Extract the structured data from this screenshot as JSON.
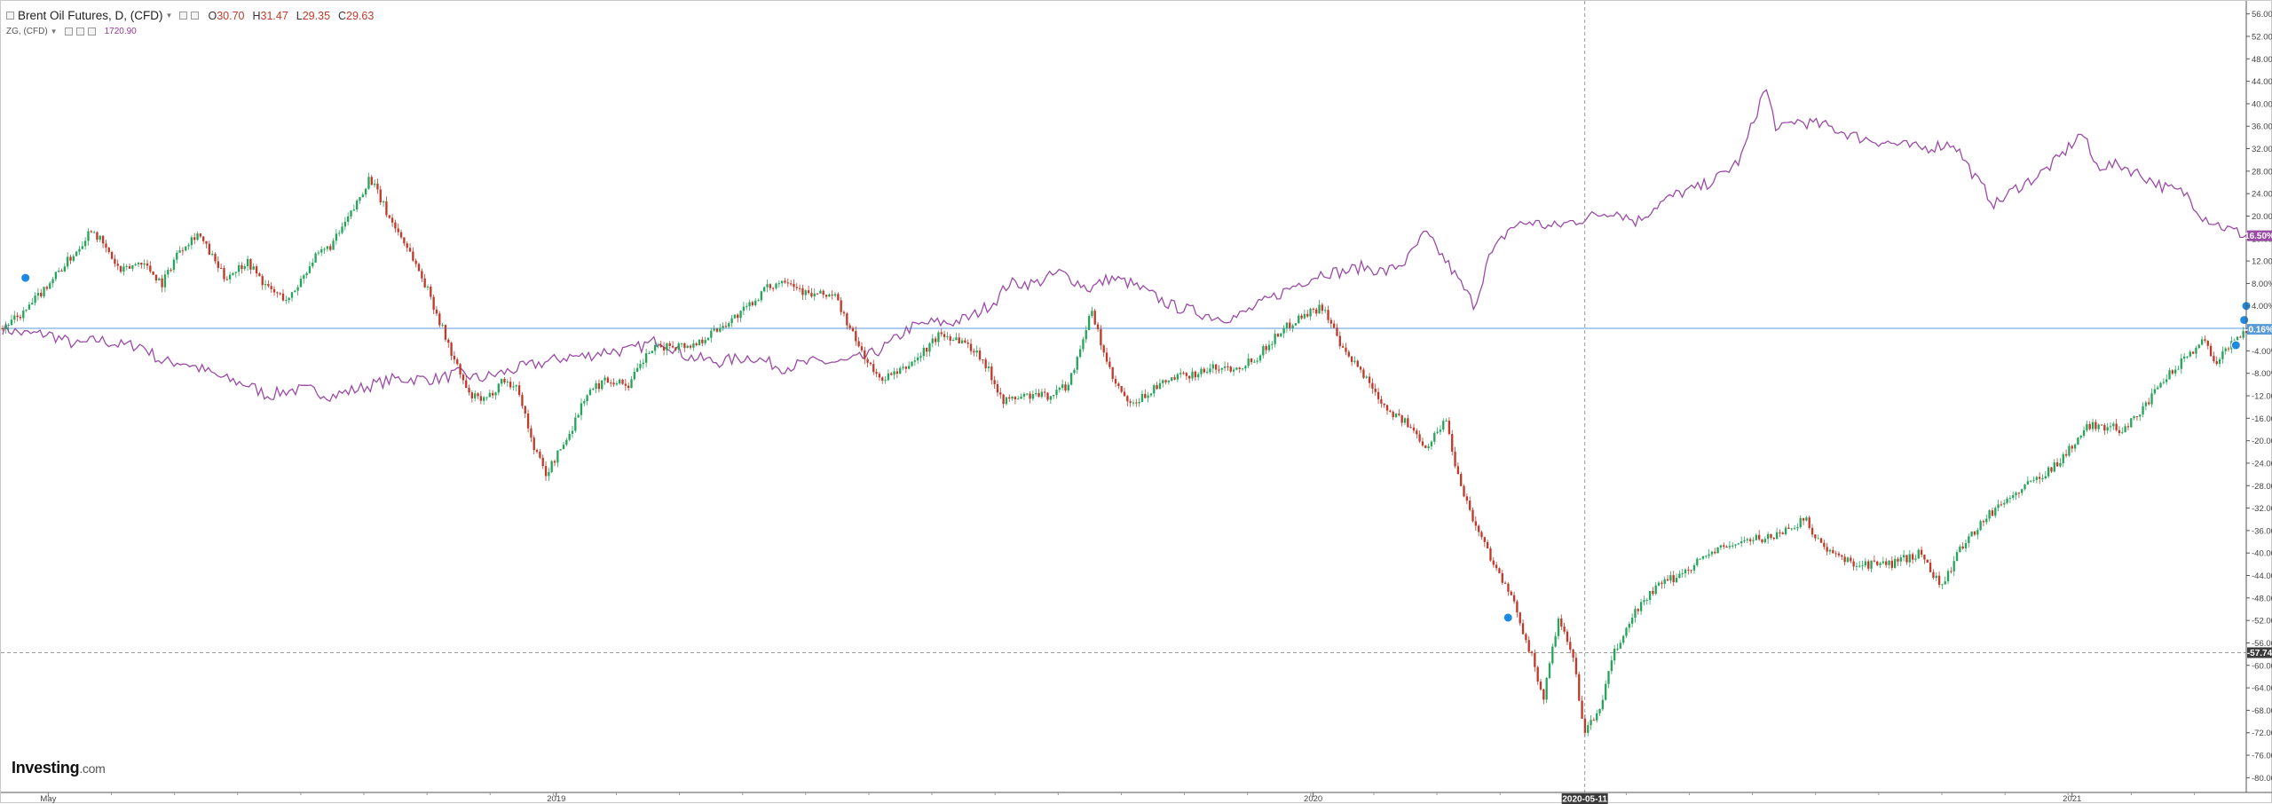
{
  "legend": {
    "title": "Brent Oil Futures, D, (CFD)",
    "ohlc": [
      {
        "label": "O",
        "value": "30.70"
      },
      {
        "label": "H",
        "value": "31.47"
      },
      {
        "label": "L",
        "value": "29.35"
      },
      {
        "label": "C",
        "value": "29.63"
      }
    ],
    "compare_symbol": "ZG, (CFD)",
    "compare_value": "1720.90"
  },
  "branding": {
    "logo": "Investing",
    "logo_suffix": ".com"
  },
  "colors": {
    "up": "#26a65b",
    "down": "#c0392b",
    "compare": "#9b4ba6",
    "baseline": "#5b9bd5",
    "crosshair": "#9c9c9c",
    "marker": "#1e88e5"
  },
  "chart_data": {
    "type": "line",
    "chart_style": "candlestick vs. line (percent comparison)",
    "y_axis": {
      "unit": "%",
      "range": [
        -82,
        58
      ],
      "ticks": [
        "56.00%",
        "52.00%",
        "48.00%",
        "44.00%",
        "40.00%",
        "36.00%",
        "32.00%",
        "28.00%",
        "24.00%",
        "20.00%",
        "16.00%",
        "12.00%",
        "8.00%",
        "4.00%",
        "0.00%",
        "-4.00%",
        "-8.00%",
        "-12.00%",
        "-16.00%",
        "-20.00%",
        "-24.00%",
        "-28.00%",
        "-32.00%",
        "-36.00%",
        "-40.00%",
        "-44.00%",
        "-48.00%",
        "-52.00%",
        "-56.00%",
        "-60.00%",
        "-64.00%",
        "-68.00%",
        "-72.00%",
        "-76.00%",
        "-80.00%"
      ],
      "tick_values": [
        56,
        52,
        48,
        44,
        40,
        36,
        32,
        28,
        24,
        20,
        16,
        12,
        8,
        4,
        0,
        -4,
        -8,
        -12,
        -16,
        -20,
        -24,
        -28,
        -32,
        -36,
        -40,
        -44,
        -48,
        -52,
        -56,
        -60,
        -64,
        -68,
        -72,
        -76,
        -80
      ],
      "position": "right"
    },
    "x_axis": {
      "ticks": [
        "May",
        "2019",
        "2020",
        "2021"
      ],
      "tick_dates": [
        "2018-05-01",
        "2019-01-01",
        "2020-01-01",
        "2021-01-01"
      ],
      "range": [
        "2018-04-09",
        "2021-03-26"
      ]
    },
    "crosshair": {
      "date": "2020-05-11",
      "date_label": "2020-05-11",
      "value": -57.74,
      "value_label": "-57.74"
    },
    "badges": [
      {
        "series": "ZG, (CFD)",
        "value": 16.5,
        "label": "16.50%"
      },
      {
        "series": "Brent Oil Futures",
        "value": -0.16,
        "label": "-0.16%"
      }
    ],
    "series": [
      {
        "name": "Brent Oil Futures, D, (CFD)",
        "kind": "candlestick",
        "points": [
          [
            "2018-04-09",
            0
          ],
          [
            "2018-04-20",
            3
          ],
          [
            "2018-05-01",
            8
          ],
          [
            "2018-05-15",
            14
          ],
          [
            "2018-05-22",
            18
          ],
          [
            "2018-06-05",
            10
          ],
          [
            "2018-06-15",
            12
          ],
          [
            "2018-06-25",
            8
          ],
          [
            "2018-07-03",
            14
          ],
          [
            "2018-07-12",
            17
          ],
          [
            "2018-07-25",
            9
          ],
          [
            "2018-08-05",
            12
          ],
          [
            "2018-08-15",
            7
          ],
          [
            "2018-08-25",
            5
          ],
          [
            "2018-09-05",
            12
          ],
          [
            "2018-09-15",
            15
          ],
          [
            "2018-09-25",
            21
          ],
          [
            "2018-10-03",
            27
          ],
          [
            "2018-10-12",
            20
          ],
          [
            "2018-10-22",
            14
          ],
          [
            "2018-11-01",
            6
          ],
          [
            "2018-11-12",
            -5
          ],
          [
            "2018-11-20",
            -12
          ],
          [
            "2018-11-28",
            -13
          ],
          [
            "2018-12-06",
            -9
          ],
          [
            "2018-12-14",
            -11
          ],
          [
            "2018-12-20",
            -20
          ],
          [
            "2018-12-27",
            -26
          ],
          [
            "2019-01-07",
            -19
          ],
          [
            "2019-01-15",
            -12
          ],
          [
            "2019-01-25",
            -9
          ],
          [
            "2019-02-05",
            -10
          ],
          [
            "2019-02-15",
            -4
          ],
          [
            "2019-02-25",
            -3
          ],
          [
            "2019-03-08",
            -3
          ],
          [
            "2019-03-20",
            0
          ],
          [
            "2019-04-01",
            3
          ],
          [
            "2019-04-12",
            7
          ],
          [
            "2019-04-22",
            9
          ],
          [
            "2019-05-02",
            6
          ],
          [
            "2019-05-15",
            6
          ],
          [
            "2019-05-25",
            -2
          ],
          [
            "2019-06-05",
            -9
          ],
          [
            "2019-06-15",
            -8
          ],
          [
            "2019-06-25",
            -5
          ],
          [
            "2019-07-05",
            -1
          ],
          [
            "2019-07-15",
            -2
          ],
          [
            "2019-07-25",
            -5
          ],
          [
            "2019-08-05",
            -13
          ],
          [
            "2019-08-15",
            -12
          ],
          [
            "2019-08-26",
            -12
          ],
          [
            "2019-09-05",
            -10
          ],
          [
            "2019-09-16",
            3
          ],
          [
            "2019-09-26",
            -9
          ],
          [
            "2019-10-05",
            -14
          ],
          [
            "2019-10-15",
            -11
          ],
          [
            "2019-10-25",
            -9
          ],
          [
            "2019-11-05",
            -8
          ],
          [
            "2019-11-15",
            -7
          ],
          [
            "2019-11-25",
            -7
          ],
          [
            "2019-12-05",
            -5
          ],
          [
            "2019-12-15",
            -1
          ],
          [
            "2019-12-25",
            2
          ],
          [
            "2020-01-06",
            4
          ],
          [
            "2020-01-15",
            -4
          ],
          [
            "2020-01-25",
            -8
          ],
          [
            "2020-02-05",
            -14
          ],
          [
            "2020-02-15",
            -17
          ],
          [
            "2020-02-25",
            -21
          ],
          [
            "2020-03-05",
            -16
          ],
          [
            "2020-03-10",
            -25
          ],
          [
            "2020-03-18",
            -34
          ],
          [
            "2020-03-31",
            -44
          ],
          [
            "2020-04-08",
            -50
          ],
          [
            "2020-04-15",
            -58
          ],
          [
            "2020-04-21",
            -66
          ],
          [
            "2020-04-28",
            -52
          ],
          [
            "2020-05-05",
            -58
          ],
          [
            "2020-05-11",
            -72
          ],
          [
            "2020-05-18",
            -68
          ],
          [
            "2020-05-25",
            -58
          ],
          [
            "2020-06-05",
            -50
          ],
          [
            "2020-06-15",
            -46
          ],
          [
            "2020-06-25",
            -44
          ],
          [
            "2020-07-10",
            -40
          ],
          [
            "2020-07-25",
            -38
          ],
          [
            "2020-08-10",
            -37
          ],
          [
            "2020-08-25",
            -34
          ],
          [
            "2020-09-05",
            -40
          ],
          [
            "2020-09-20",
            -42
          ],
          [
            "2020-10-05",
            -42
          ],
          [
            "2020-10-20",
            -40
          ],
          [
            "2020-10-30",
            -46
          ],
          [
            "2020-11-10",
            -38
          ],
          [
            "2020-11-25",
            -32
          ],
          [
            "2020-12-10",
            -28
          ],
          [
            "2020-12-25",
            -24
          ],
          [
            "2021-01-10",
            -17
          ],
          [
            "2021-01-25",
            -18
          ],
          [
            "2021-02-05",
            -14
          ],
          [
            "2021-02-15",
            -9
          ],
          [
            "2021-02-25",
            -5
          ],
          [
            "2021-03-05",
            -2
          ],
          [
            "2021-03-12",
            -6
          ],
          [
            "2021-03-20",
            -2
          ],
          [
            "2021-03-26",
            -0.16
          ]
        ]
      },
      {
        "name": "ZG, (CFD)",
        "kind": "line",
        "points": [
          [
            "2018-04-09",
            0
          ],
          [
            "2018-04-20",
            -1
          ],
          [
            "2018-05-01",
            -1
          ],
          [
            "2018-05-15",
            -3
          ],
          [
            "2018-05-25",
            -2
          ],
          [
            "2018-06-05",
            -3
          ],
          [
            "2018-06-15",
            -3
          ],
          [
            "2018-06-25",
            -6
          ],
          [
            "2018-07-05",
            -6
          ],
          [
            "2018-07-12",
            -7
          ],
          [
            "2018-07-25",
            -9
          ],
          [
            "2018-08-05",
            -10
          ],
          [
            "2018-08-15",
            -12
          ],
          [
            "2018-08-25",
            -11
          ],
          [
            "2018-09-05",
            -11
          ],
          [
            "2018-09-15",
            -12
          ],
          [
            "2018-09-25",
            -11
          ],
          [
            "2018-10-05",
            -10
          ],
          [
            "2018-10-15",
            -9
          ],
          [
            "2018-10-25",
            -9
          ],
          [
            "2018-11-05",
            -9
          ],
          [
            "2018-11-15",
            -8
          ],
          [
            "2018-11-25",
            -9
          ],
          [
            "2018-12-05",
            -8
          ],
          [
            "2018-12-15",
            -7
          ],
          [
            "2018-12-27",
            -6
          ],
          [
            "2019-01-07",
            -5
          ],
          [
            "2019-01-15",
            -5
          ],
          [
            "2019-01-25",
            -4
          ],
          [
            "2019-02-05",
            -4
          ],
          [
            "2019-02-20",
            -2
          ],
          [
            "2019-03-05",
            -5
          ],
          [
            "2019-03-20",
            -6
          ],
          [
            "2019-04-05",
            -5
          ],
          [
            "2019-04-20",
            -7
          ],
          [
            "2019-05-05",
            -6
          ],
          [
            "2019-05-20",
            -6
          ],
          [
            "2019-05-31",
            -5
          ],
          [
            "2019-06-10",
            -3
          ],
          [
            "2019-06-20",
            0
          ],
          [
            "2019-06-30",
            1
          ],
          [
            "2019-07-10",
            1
          ],
          [
            "2019-07-20",
            2
          ],
          [
            "2019-08-01",
            5
          ],
          [
            "2019-08-07",
            8
          ],
          [
            "2019-08-20",
            8
          ],
          [
            "2019-09-01",
            10
          ],
          [
            "2019-09-15",
            7
          ],
          [
            "2019-09-25",
            9
          ],
          [
            "2019-10-05",
            8
          ],
          [
            "2019-10-15",
            6
          ],
          [
            "2019-10-25",
            4
          ],
          [
            "2019-11-05",
            3
          ],
          [
            "2019-11-15",
            2
          ],
          [
            "2019-11-25",
            2
          ],
          [
            "2019-12-05",
            4
          ],
          [
            "2019-12-15",
            6
          ],
          [
            "2019-12-25",
            8
          ],
          [
            "2020-01-06",
            10
          ],
          [
            "2020-01-15",
            10
          ],
          [
            "2020-01-25",
            11
          ],
          [
            "2020-02-05",
            10
          ],
          [
            "2020-02-15",
            12
          ],
          [
            "2020-02-24",
            17
          ],
          [
            "2020-03-05",
            12
          ],
          [
            "2020-03-19",
            4
          ],
          [
            "2020-03-25",
            12
          ],
          [
            "2020-04-05",
            18
          ],
          [
            "2020-04-15",
            19
          ],
          [
            "2020-04-25",
            18
          ],
          [
            "2020-05-05",
            19
          ],
          [
            "2020-05-15",
            20
          ],
          [
            "2020-05-25",
            21
          ],
          [
            "2020-06-05",
            19
          ],
          [
            "2020-06-15",
            22
          ],
          [
            "2020-06-25",
            24
          ],
          [
            "2020-07-05",
            25
          ],
          [
            "2020-07-15",
            27
          ],
          [
            "2020-07-25",
            30
          ],
          [
            "2020-08-06",
            43
          ],
          [
            "2020-08-12",
            35
          ],
          [
            "2020-08-20",
            37
          ],
          [
            "2020-09-05",
            36
          ],
          [
            "2020-09-20",
            34
          ],
          [
            "2020-10-05",
            33
          ],
          [
            "2020-10-20",
            32
          ],
          [
            "2020-11-05",
            33
          ],
          [
            "2020-11-15",
            27
          ],
          [
            "2020-11-25",
            22
          ],
          [
            "2020-12-05",
            25
          ],
          [
            "2020-12-15",
            27
          ],
          [
            "2020-12-25",
            30
          ],
          [
            "2021-01-06",
            35
          ],
          [
            "2021-01-12",
            29
          ],
          [
            "2021-01-25",
            29
          ],
          [
            "2021-02-05",
            27
          ],
          [
            "2021-02-15",
            25
          ],
          [
            "2021-02-25",
            24
          ],
          [
            "2021-03-05",
            20
          ],
          [
            "2021-03-15",
            18
          ],
          [
            "2021-03-26",
            16.5
          ]
        ]
      }
    ]
  }
}
